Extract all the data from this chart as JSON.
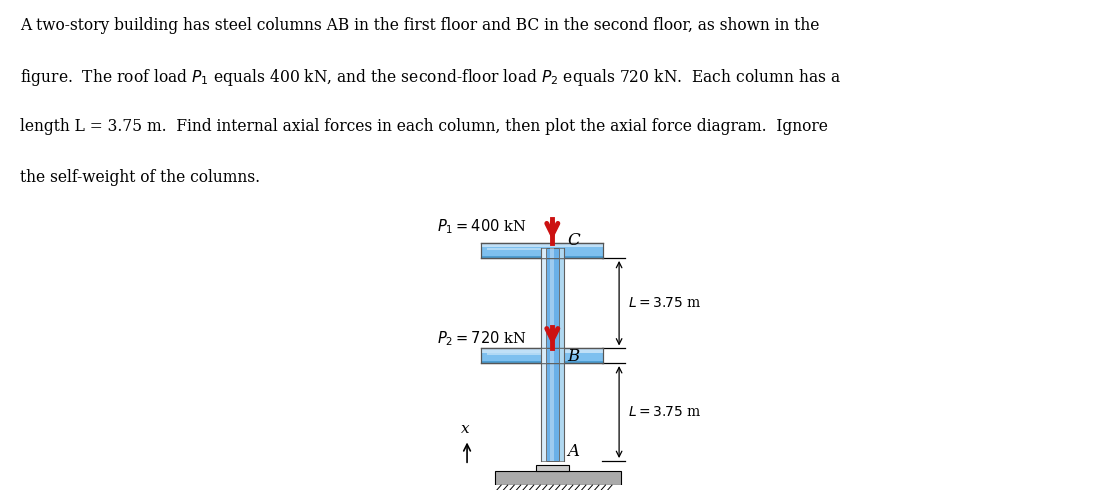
{
  "description_lines": [
    "A two-story building has steel columns AB in the first floor and BC in the second floor, as shown in the",
    "figure.  The roof load $P_1$ equals 400 kN, and the second-floor load $P_2$ equals 720 kN.  Each column has a",
    "length L = 3.75 m.  Find internal axial forces in each column, then plot the axial force diagram.  Ignore",
    "the self-weight of the columns."
  ],
  "P1_text": "$P_1 = 400$ kN",
  "P2_text": "$P_2 = 720$ kN",
  "L_text": "$L = 3.75$ m",
  "pt_A": "A",
  "pt_B": "B",
  "pt_C": "C",
  "pt_x": "x",
  "col_blue_light": "#a8d4f5",
  "col_blue_mid": "#6ab0e8",
  "col_blue_dark": "#1a6aad",
  "col_edge": "#606060",
  "beam_light": "#c8e4f8",
  "beam_mid": "#7ec0ef",
  "beam_dark": "#3a90c8",
  "beam_edge": "#555555",
  "arrow_red": "#cc1111",
  "ground_fill": "#aaaaaa",
  "base_fill": "#cccccc",
  "bg": "#ffffff",
  "fig_w": 11.16,
  "fig_h": 4.9
}
